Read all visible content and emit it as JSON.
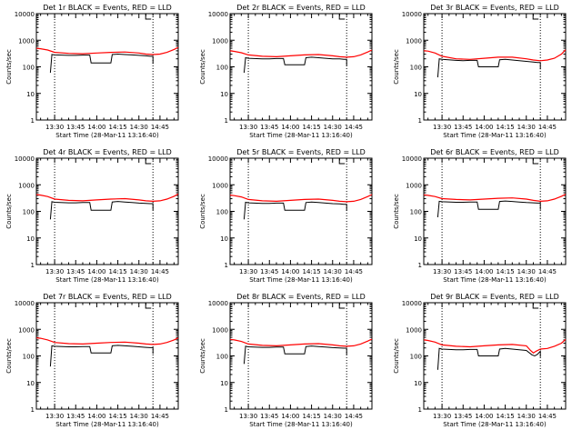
{
  "figure": {
    "y_axis_label": "Counts/sec",
    "x_axis_label": "Start Time (28-Mar-11 13:16:40)",
    "x_tick_labels": [
      "13:30",
      "13:45",
      "14:00",
      "14:15",
      "14:30",
      "14:45"
    ],
    "y_tick_labels": [
      "1",
      "10",
      "100",
      "1000",
      "10000"
    ],
    "colors": {
      "events": "#000000",
      "lld": "#ff0000",
      "marker_lines": "#000000"
    },
    "grid": false,
    "layout": "3x3 grid of panels"
  },
  "chart_data": [
    {
      "type": "line",
      "title": "Det 1r BLACK = Events, RED = LLD",
      "xlabel": "Start Time (28-Mar-11 13:16:40)",
      "ylabel": "Counts/sec",
      "ylog": true,
      "ylim": [
        1,
        10000
      ],
      "xlim": [
        "13:17",
        "14:58"
      ],
      "markers": [
        "13:30",
        "14:40"
      ],
      "series": [
        {
          "key": "events",
          "x": [
            "13:27",
            "13:28",
            "13:28",
            "13:30",
            "13:40",
            "13:45",
            "13:50",
            "13:55",
            "13:56",
            "14:00",
            "14:05",
            "14:10",
            "14:11",
            "14:15",
            "14:20",
            "14:25",
            "14:30",
            "14:35",
            "14:38",
            "14:40",
            "14:40"
          ],
          "values": [
            60,
            270,
            290,
            280,
            270,
            270,
            275,
            275,
            140,
            140,
            140,
            140,
            290,
            300,
            290,
            280,
            270,
            260,
            250,
            250,
            130
          ]
        },
        {
          "key": "lld",
          "x": [
            "13:17",
            "13:20",
            "13:25",
            "13:30",
            "13:40",
            "13:50",
            "14:00",
            "14:10",
            "14:20",
            "14:30",
            "14:35",
            "14:40",
            "14:45",
            "14:50",
            "14:55",
            "14:58"
          ],
          "values": [
            500,
            480,
            430,
            350,
            320,
            310,
            330,
            350,
            360,
            330,
            300,
            290,
            300,
            350,
            450,
            540
          ]
        }
      ]
    },
    {
      "type": "line",
      "title": "Det 2r BLACK = Events, RED = LLD",
      "xlabel": "Start Time (28-Mar-11 13:16:40)",
      "ylabel": "Counts/sec",
      "ylog": true,
      "ylim": [
        1,
        10000
      ],
      "xlim": [
        "13:17",
        "14:58"
      ],
      "markers": [
        "13:30",
        "14:40"
      ],
      "series": [
        {
          "key": "events",
          "x": [
            "13:27",
            "13:28",
            "13:28",
            "13:30",
            "13:40",
            "13:45",
            "13:50",
            "13:55",
            "13:56",
            "14:00",
            "14:05",
            "14:10",
            "14:11",
            "14:15",
            "14:20",
            "14:25",
            "14:30",
            "14:35",
            "14:38",
            "14:40",
            "14:40"
          ],
          "values": [
            60,
            210,
            220,
            210,
            200,
            200,
            205,
            205,
            120,
            120,
            120,
            120,
            220,
            230,
            220,
            210,
            200,
            200,
            190,
            190,
            110
          ]
        },
        {
          "key": "lld",
          "x": [
            "13:17",
            "13:20",
            "13:25",
            "13:30",
            "13:40",
            "13:50",
            "14:00",
            "14:10",
            "14:20",
            "14:30",
            "14:35",
            "14:40",
            "14:45",
            "14:50",
            "14:55",
            "14:58"
          ],
          "values": [
            400,
            380,
            340,
            280,
            250,
            240,
            260,
            280,
            290,
            260,
            240,
            230,
            240,
            280,
            360,
            430
          ]
        }
      ]
    },
    {
      "type": "line",
      "title": "Det 3r BLACK = Events, RED = LLD",
      "xlabel": "Start Time (28-Mar-11 13:16:40)",
      "ylabel": "Counts/sec",
      "ylog": true,
      "ylim": [
        1,
        10000
      ],
      "xlim": [
        "13:17",
        "14:58"
      ],
      "markers": [
        "13:30",
        "14:40"
      ],
      "series": [
        {
          "key": "events",
          "x": [
            "13:27",
            "13:28",
            "13:28",
            "13:30",
            "13:40",
            "13:45",
            "13:50",
            "13:55",
            "13:56",
            "14:00",
            "14:05",
            "14:10",
            "14:11",
            "14:15",
            "14:20",
            "14:25",
            "14:30",
            "14:35",
            "14:38",
            "14:40",
            "14:40"
          ],
          "values": [
            40,
            190,
            200,
            190,
            175,
            170,
            175,
            175,
            100,
            100,
            100,
            100,
            185,
            190,
            180,
            170,
            160,
            150,
            145,
            145,
            80
          ]
        },
        {
          "key": "lld",
          "x": [
            "13:17",
            "13:20",
            "13:25",
            "13:30",
            "13:40",
            "13:50",
            "14:00",
            "14:10",
            "14:20",
            "14:30",
            "14:35",
            "14:40",
            "14:45",
            "14:50",
            "14:55",
            "14:58"
          ],
          "values": [
            400,
            390,
            330,
            250,
            200,
            190,
            210,
            230,
            230,
            200,
            180,
            170,
            180,
            210,
            300,
            440
          ]
        }
      ]
    },
    {
      "type": "line",
      "title": "Det 4r BLACK = Events, RED = LLD",
      "xlabel": "Start Time (28-Mar-11 13:16:40)",
      "ylabel": "Counts/sec",
      "ylog": true,
      "ylim": [
        1,
        10000
      ],
      "xlim": [
        "13:17",
        "14:58"
      ],
      "markers": [
        "13:30",
        "14:40"
      ],
      "series": [
        {
          "key": "events",
          "x": [
            "13:27",
            "13:28",
            "13:28",
            "13:30",
            "13:40",
            "13:45",
            "13:50",
            "13:55",
            "13:56",
            "14:00",
            "14:05",
            "14:10",
            "14:11",
            "14:15",
            "14:20",
            "14:25",
            "14:30",
            "14:35",
            "14:38",
            "14:40",
            "14:40"
          ],
          "values": [
            50,
            220,
            230,
            220,
            210,
            210,
            215,
            215,
            110,
            110,
            110,
            110,
            225,
            235,
            225,
            215,
            205,
            200,
            195,
            195,
            110
          ]
        },
        {
          "key": "lld",
          "x": [
            "13:17",
            "13:20",
            "13:25",
            "13:30",
            "13:40",
            "13:50",
            "14:00",
            "14:10",
            "14:20",
            "14:30",
            "14:35",
            "14:40",
            "14:45",
            "14:50",
            "14:55",
            "14:58"
          ],
          "values": [
            430,
            410,
            360,
            290,
            260,
            250,
            270,
            290,
            300,
            270,
            250,
            240,
            250,
            290,
            370,
            450
          ]
        }
      ]
    },
    {
      "type": "line",
      "title": "Det 5r BLACK = Events, RED = LLD",
      "xlabel": "Start Time (28-Mar-11 13:16:40)",
      "ylabel": "Counts/sec",
      "ylog": true,
      "ylim": [
        1,
        10000
      ],
      "xlim": [
        "13:17",
        "14:58"
      ],
      "markers": [
        "13:30",
        "14:40"
      ],
      "series": [
        {
          "key": "events",
          "x": [
            "13:27",
            "13:28",
            "13:28",
            "13:30",
            "13:40",
            "13:45",
            "13:50",
            "13:55",
            "13:56",
            "14:00",
            "14:05",
            "14:10",
            "14:11",
            "14:15",
            "14:20",
            "14:25",
            "14:30",
            "14:35",
            "14:38",
            "14:40",
            "14:40"
          ],
          "values": [
            50,
            210,
            220,
            210,
            200,
            200,
            205,
            205,
            110,
            110,
            110,
            110,
            215,
            225,
            215,
            205,
            195,
            190,
            185,
            185,
            105
          ]
        },
        {
          "key": "lld",
          "x": [
            "13:17",
            "13:20",
            "13:25",
            "13:30",
            "13:40",
            "13:50",
            "14:00",
            "14:10",
            "14:20",
            "14:30",
            "14:35",
            "14:40",
            "14:45",
            "14:50",
            "14:55",
            "14:58"
          ],
          "values": [
            410,
            390,
            350,
            280,
            250,
            240,
            260,
            280,
            290,
            260,
            240,
            230,
            240,
            280,
            360,
            430
          ]
        }
      ]
    },
    {
      "type": "line",
      "title": "Det 6r BLACK = Events, RED = LLD",
      "xlabel": "Start Time (28-Mar-11 13:16:40)",
      "ylabel": "Counts/sec",
      "ylog": true,
      "ylim": [
        1,
        10000
      ],
      "xlim": [
        "13:17",
        "14:58"
      ],
      "markers": [
        "13:30",
        "14:40"
      ],
      "series": [
        {
          "key": "events",
          "x": [
            "13:27",
            "13:28",
            "13:28",
            "13:30",
            "13:40",
            "13:45",
            "13:50",
            "13:55",
            "13:56",
            "14:00",
            "14:05",
            "14:10",
            "14:11",
            "14:15",
            "14:20",
            "14:25",
            "14:30",
            "14:35",
            "14:38",
            "14:40",
            "14:40"
          ],
          "values": [
            60,
            230,
            240,
            230,
            220,
            220,
            225,
            225,
            120,
            120,
            120,
            120,
            235,
            245,
            235,
            225,
            215,
            210,
            205,
            205,
            115
          ]
        },
        {
          "key": "lld",
          "x": [
            "13:17",
            "13:20",
            "13:25",
            "13:30",
            "13:40",
            "13:50",
            "14:00",
            "14:10",
            "14:20",
            "14:30",
            "14:35",
            "14:40",
            "14:45",
            "14:50",
            "14:55",
            "14:58"
          ],
          "values": [
            420,
            400,
            360,
            300,
            280,
            270,
            290,
            310,
            320,
            290,
            260,
            240,
            250,
            290,
            370,
            440
          ]
        }
      ]
    },
    {
      "type": "line",
      "title": "Det 7r BLACK = Events, RED = LLD",
      "xlabel": "Start Time (28-Mar-11 13:16:40)",
      "ylabel": "Counts/sec",
      "ylog": true,
      "ylim": [
        1,
        10000
      ],
      "xlim": [
        "13:17",
        "14:58"
      ],
      "markers": [
        "13:30",
        "14:40"
      ],
      "series": [
        {
          "key": "events",
          "x": [
            "13:27",
            "13:28",
            "13:28",
            "13:30",
            "13:40",
            "13:45",
            "13:50",
            "13:55",
            "13:56",
            "14:00",
            "14:05",
            "14:10",
            "14:11",
            "14:15",
            "14:20",
            "14:25",
            "14:30",
            "14:35",
            "14:38",
            "14:40",
            "14:40"
          ],
          "values": [
            40,
            230,
            240,
            230,
            220,
            220,
            225,
            225,
            130,
            130,
            130,
            130,
            240,
            250,
            240,
            230,
            220,
            210,
            205,
            205,
            120
          ]
        },
        {
          "key": "lld",
          "x": [
            "13:17",
            "13:20",
            "13:25",
            "13:30",
            "13:40",
            "13:50",
            "14:00",
            "14:10",
            "14:20",
            "14:30",
            "14:35",
            "14:40",
            "14:45",
            "14:50",
            "14:55",
            "14:58"
          ],
          "values": [
            480,
            460,
            400,
            320,
            290,
            280,
            300,
            320,
            330,
            300,
            280,
            270,
            280,
            320,
            400,
            480
          ]
        }
      ]
    },
    {
      "type": "line",
      "title": "Det 8r BLACK = Events, RED = LLD",
      "xlabel": "Start Time (28-Mar-11 13:16:40)",
      "ylabel": "Counts/sec",
      "ylog": true,
      "ylim": [
        1,
        10000
      ],
      "xlim": [
        "13:17",
        "14:58"
      ],
      "markers": [
        "13:30",
        "14:40"
      ],
      "series": [
        {
          "key": "events",
          "x": [
            "13:27",
            "13:28",
            "13:28",
            "13:30",
            "13:40",
            "13:45",
            "13:50",
            "13:55",
            "13:56",
            "14:00",
            "14:05",
            "14:10",
            "14:11",
            "14:15",
            "14:20",
            "14:25",
            "14:30",
            "14:35",
            "14:38",
            "14:40",
            "14:40"
          ],
          "values": [
            50,
            220,
            230,
            220,
            210,
            210,
            215,
            215,
            120,
            120,
            120,
            120,
            225,
            235,
            225,
            215,
            205,
            200,
            195,
            195,
            110
          ]
        },
        {
          "key": "lld",
          "x": [
            "13:17",
            "13:20",
            "13:25",
            "13:30",
            "13:40",
            "13:50",
            "14:00",
            "14:10",
            "14:20",
            "14:30",
            "14:35",
            "14:40",
            "14:45",
            "14:50",
            "14:55",
            "14:58"
          ],
          "values": [
            420,
            400,
            350,
            280,
            250,
            240,
            260,
            280,
            290,
            260,
            240,
            230,
            240,
            280,
            360,
            430
          ]
        }
      ]
    },
    {
      "type": "line",
      "title": "Det 9r BLACK = Events, RED = LLD",
      "xlabel": "Start Time (28-Mar-11 13:16:40)",
      "ylabel": "Counts/sec",
      "ylog": true,
      "ylim": [
        1,
        10000
      ],
      "xlim": [
        "13:17",
        "14:58"
      ],
      "markers": [
        "13:30",
        "14:40"
      ],
      "series": [
        {
          "key": "events",
          "x": [
            "13:27",
            "13:28",
            "13:28",
            "13:30",
            "13:40",
            "13:45",
            "13:50",
            "13:55",
            "13:56",
            "14:00",
            "14:05",
            "14:10",
            "14:11",
            "14:15",
            "14:20",
            "14:25",
            "14:30",
            "14:34",
            "14:36",
            "14:38",
            "14:40",
            "14:40"
          ],
          "values": [
            30,
            180,
            190,
            180,
            170,
            170,
            175,
            175,
            100,
            100,
            100,
            100,
            180,
            190,
            180,
            170,
            160,
            110,
            100,
            115,
            150,
            90
          ]
        },
        {
          "key": "lld",
          "x": [
            "13:17",
            "13:20",
            "13:25",
            "13:30",
            "13:40",
            "13:50",
            "14:00",
            "14:10",
            "14:20",
            "14:30",
            "14:33",
            "14:35",
            "14:37",
            "14:40",
            "14:45",
            "14:50",
            "14:55",
            "14:58"
          ],
          "values": [
            400,
            380,
            330,
            260,
            230,
            220,
            240,
            260,
            270,
            240,
            160,
            130,
            150,
            180,
            190,
            230,
            300,
            420
          ]
        }
      ]
    }
  ]
}
